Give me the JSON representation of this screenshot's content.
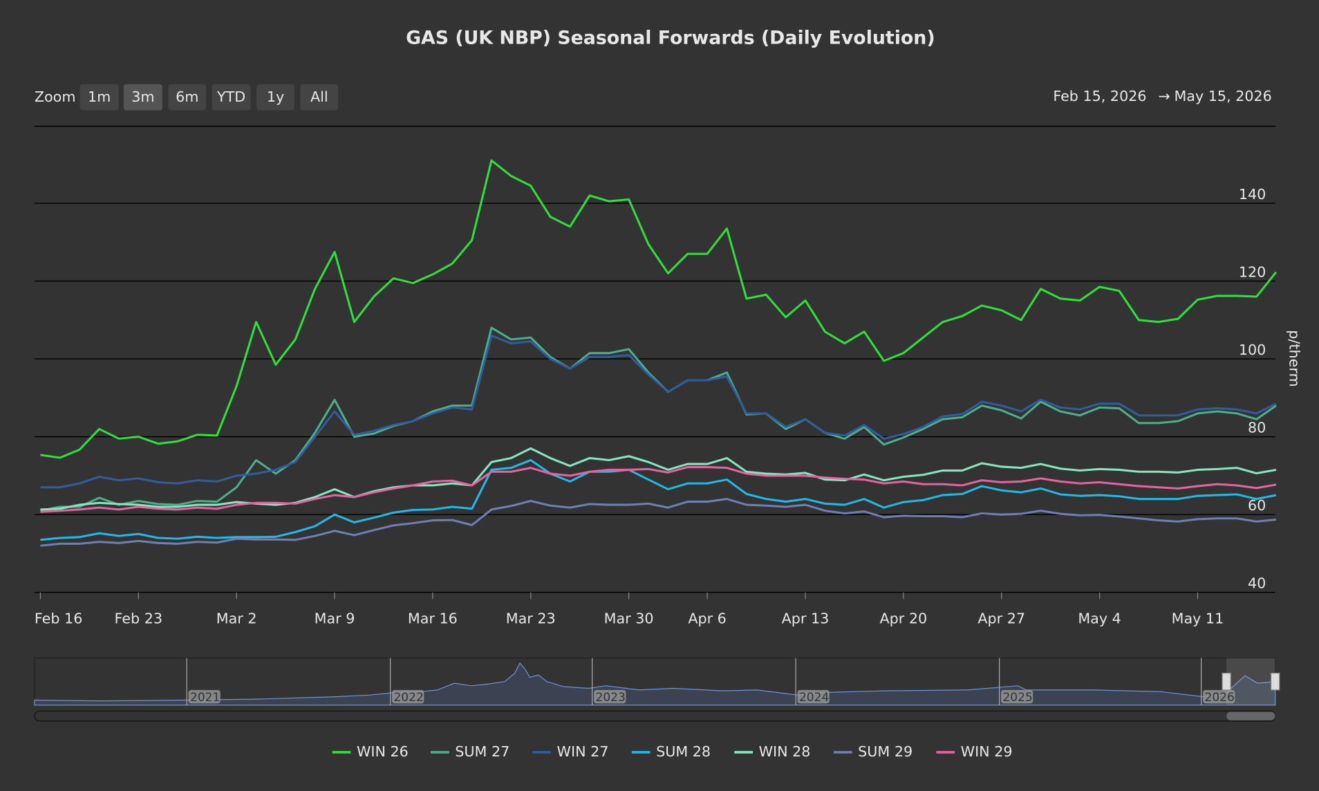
{
  "chart_data": {
    "type": "line",
    "title": "GAS (UK NBP) Seasonal Forwards (Daily Evolution)",
    "zoom_label": "Zoom",
    "zoom_buttons": [
      "1m",
      "3m",
      "6m",
      "YTD",
      "1y",
      "All"
    ],
    "zoom_selected": "3m",
    "range_from": "Feb 15, 2026",
    "range_arrow": "→",
    "range_to": "May 15, 2026",
    "y_axis_title": "p/therm",
    "navigator_labels": [
      "2021",
      "2022",
      "2023",
      "2024",
      "2025",
      "2026"
    ],
    "ylim": [
      40,
      160
    ],
    "yticks": [
      40,
      60,
      80,
      100,
      120,
      140
    ],
    "grid": true,
    "categories": [
      "Feb 16",
      null,
      null,
      null,
      null,
      "Feb 23",
      null,
      null,
      null,
      null,
      "Mar 2",
      null,
      null,
      null,
      null,
      "Mar 9",
      null,
      null,
      null,
      null,
      "Mar 16",
      null,
      null,
      null,
      null,
      "Mar 23",
      null,
      null,
      null,
      null,
      "Mar 30",
      null,
      null,
      null,
      "Apr 6",
      null,
      null,
      null,
      null,
      "Apr 13",
      null,
      null,
      null,
      null,
      "Apr 20",
      null,
      null,
      null,
      null,
      "Apr 27",
      null,
      null,
      null,
      null,
      "May 4",
      null,
      null,
      null,
      null,
      "May 11",
      null,
      null,
      null,
      null
    ],
    "series": [
      {
        "name": "WIN 26",
        "color": "#2ee03a",
        "values": [
          75.3,
          74.6,
          76.7,
          82,
          79.5,
          80,
          78.2,
          78.8,
          80.5,
          80.3,
          93,
          109.5,
          98.5,
          105,
          118,
          127.5,
          109.5,
          116,
          120.7,
          119.5,
          121.7,
          124.5,
          130.5,
          151,
          147,
          144.5,
          136.5,
          134,
          142,
          140.5,
          141,
          129.5,
          122,
          127,
          127,
          133.5,
          115.5,
          116.5,
          110.7,
          115,
          107,
          104,
          107,
          99.5,
          101.5,
          105.5,
          109.5,
          111,
          113.7,
          112.5,
          110,
          118,
          115.5,
          115,
          118.5,
          117.5,
          110,
          109.5,
          110.3,
          115.2,
          116.2,
          116.2,
          116,
          122.3
        ]
      },
      {
        "name": "SUM 27",
        "color": "#4caf8c",
        "values": [
          61,
          62,
          62,
          64.3,
          62.5,
          63.5,
          62.7,
          62.5,
          63.5,
          63.3,
          67,
          74,
          70.5,
          74,
          81,
          89.5,
          80,
          80.8,
          82.8,
          84,
          86.5,
          88,
          88,
          108,
          105,
          105.5,
          100.5,
          97.5,
          101.5,
          101.5,
          102.5,
          96.5,
          91.5,
          94.5,
          94.5,
          96.5,
          85.7,
          86,
          82,
          84.5,
          81,
          79.5,
          82.5,
          78,
          79.8,
          82,
          84.5,
          85,
          88,
          86.8,
          84.7,
          89,
          86.5,
          85.5,
          87.5,
          87.3,
          83.5,
          83.5,
          84,
          86,
          86.5,
          86,
          84.5,
          88
        ]
      },
      {
        "name": "WIN 27",
        "color": "#2f5d9e",
        "values": [
          67,
          67,
          68,
          69.7,
          68.8,
          69.3,
          68.3,
          68,
          68.8,
          68.5,
          70,
          70.5,
          71.5,
          73.5,
          80,
          86.5,
          80.5,
          81.5,
          83,
          84,
          86,
          87.5,
          87,
          106,
          104,
          104.5,
          100,
          97.5,
          100.5,
          100.5,
          101,
          96,
          91.5,
          94.5,
          94.5,
          95.5,
          86,
          86,
          82.5,
          84.5,
          81,
          80.3,
          83,
          79.5,
          80.7,
          82.5,
          85.2,
          85.8,
          89,
          88,
          86.5,
          89.5,
          87.5,
          87,
          88.5,
          88.5,
          85.5,
          85.5,
          85.5,
          87,
          87.3,
          87,
          86,
          88.5
        ]
      },
      {
        "name": "SUM 28",
        "color": "#21b9e6",
        "values": [
          53.5,
          54,
          54.2,
          55.2,
          54.5,
          55,
          54,
          53.8,
          54.3,
          54,
          54.2,
          54.2,
          54.3,
          55.5,
          57,
          60,
          58,
          59.2,
          60.5,
          61.2,
          61.3,
          62,
          61.5,
          71.5,
          72,
          74,
          70.5,
          68.5,
          71,
          71,
          71.5,
          69,
          66.5,
          68,
          68,
          69,
          65.3,
          64,
          63.3,
          64,
          62.8,
          62.5,
          64,
          61.8,
          63.2,
          63.7,
          65,
          65.3,
          67.3,
          66.2,
          65.7,
          66.7,
          65.2,
          64.8,
          65,
          64.7,
          64,
          64,
          64,
          64.8,
          65,
          65.2,
          64,
          65
        ]
      },
      {
        "name": "WIN 28",
        "color": "#84e8be",
        "values": [
          61.3,
          61.5,
          62.5,
          63,
          62.7,
          62.5,
          62,
          62,
          62.5,
          62.5,
          63.2,
          62.8,
          62.5,
          63,
          64.5,
          66.5,
          64.5,
          66,
          67,
          67.5,
          67.5,
          68,
          67.5,
          73.5,
          74.5,
          77,
          74.5,
          72.5,
          74.5,
          74,
          75,
          73.5,
          71.5,
          73,
          73,
          74.5,
          71,
          70.5,
          70.3,
          70.7,
          69,
          68.8,
          70.3,
          68.8,
          69.7,
          70.2,
          71.3,
          71.3,
          73.2,
          72.3,
          72,
          73,
          71.8,
          71.3,
          71.7,
          71.5,
          71,
          71,
          70.8,
          71.5,
          71.7,
          72,
          70.6,
          71.5
        ]
      },
      {
        "name": "SUM 29",
        "color": "#6f7fb3",
        "values": [
          52,
          52.5,
          52.5,
          53,
          52.7,
          53.2,
          52.7,
          52.5,
          53,
          52.8,
          53.8,
          53.6,
          53.6,
          53.5,
          54.5,
          55.8,
          54.7,
          56,
          57.2,
          57.8,
          58.5,
          58.6,
          57.3,
          61.3,
          62.2,
          63.5,
          62.3,
          61.8,
          62.7,
          62.5,
          62.5,
          62.8,
          61.8,
          63.3,
          63.3,
          64,
          62.5,
          62.3,
          62,
          62.5,
          61,
          60.3,
          60.8,
          59.3,
          59.7,
          59.6,
          59.6,
          59.3,
          60.3,
          60,
          60.2,
          61,
          60.2,
          59.8,
          59.9,
          59.5,
          59,
          58.5,
          58.2,
          58.8,
          59,
          59,
          58.2,
          58.7
        ]
      },
      {
        "name": "WIN 29",
        "color": "#e564a0",
        "values": [
          60.7,
          61,
          61.3,
          61.8,
          61.3,
          62,
          61.5,
          61.3,
          61.8,
          61.5,
          62.5,
          63,
          63,
          62.8,
          64,
          65,
          64.5,
          65.7,
          66.7,
          67.5,
          68.5,
          68.7,
          67.5,
          71,
          71,
          72,
          70.5,
          70,
          71,
          71.5,
          71.5,
          71.7,
          70.8,
          72.2,
          72.2,
          72,
          70.5,
          70,
          70,
          70,
          69.5,
          69.2,
          69,
          68,
          68.5,
          67.8,
          67.8,
          67.5,
          68.8,
          68.3,
          68.5,
          69.3,
          68.5,
          68,
          68.3,
          67.8,
          67.3,
          67,
          66.7,
          67.3,
          67.8,
          67.5,
          66.8,
          67.7
        ]
      }
    ]
  }
}
